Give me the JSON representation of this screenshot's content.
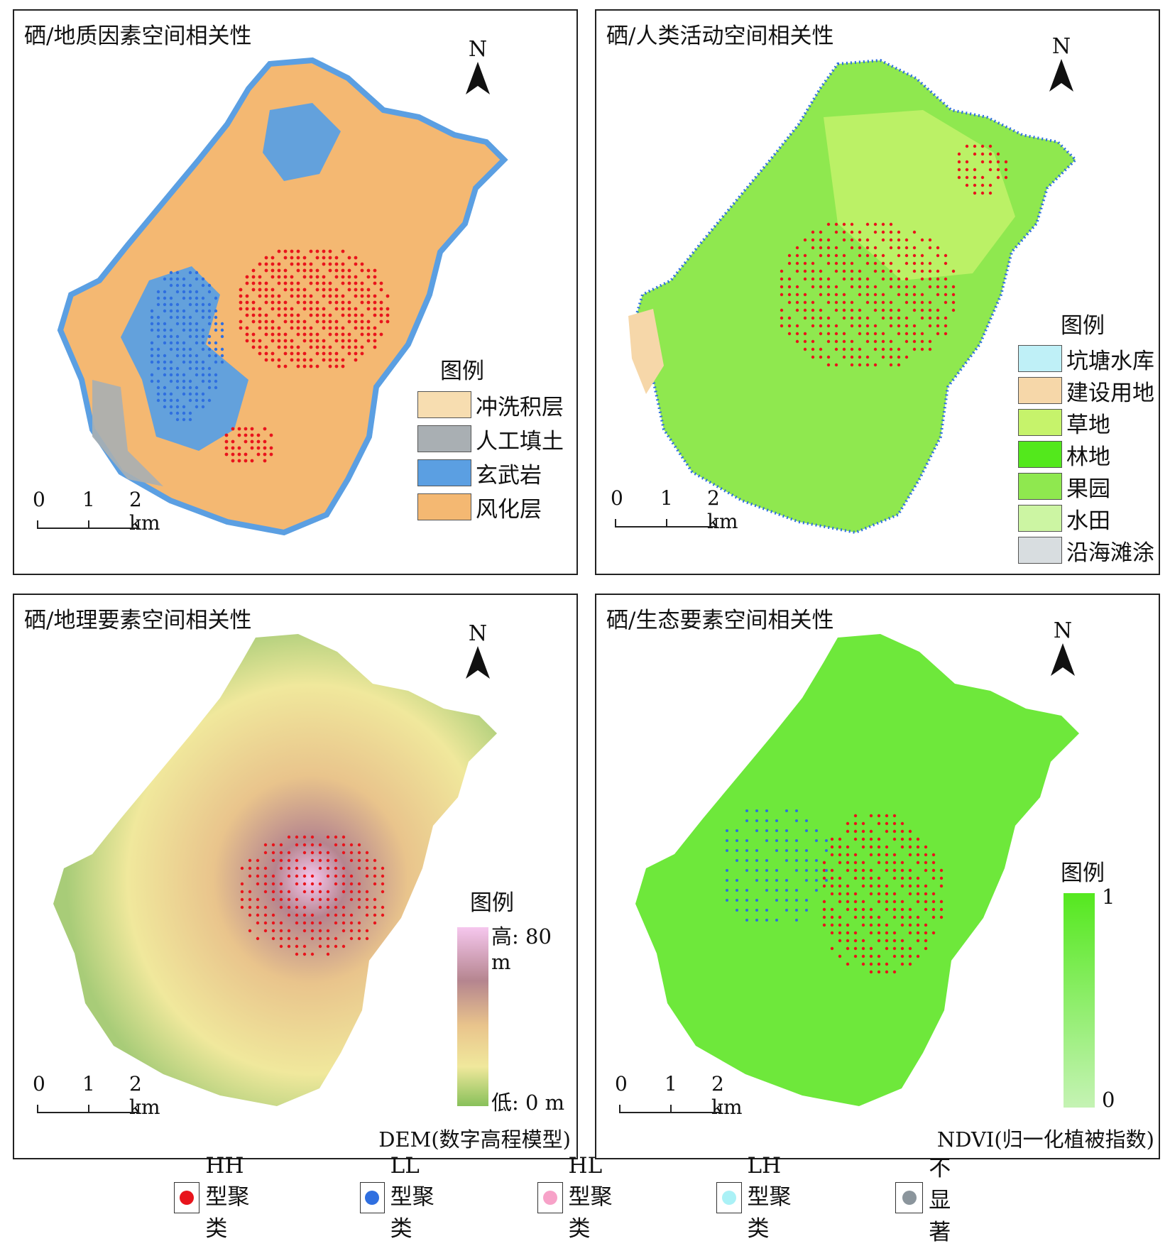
{
  "panels": [
    {
      "title": "硒/地质因素空间相关性",
      "legend_title": "图例",
      "legend": [
        {
          "label": "冲洗积层",
          "color": "#f7ddb0"
        },
        {
          "label": "人工填土",
          "color": "#a9afb3"
        },
        {
          "label": "玄武岩",
          "color": "#5b9fe2"
        },
        {
          "label": "风化层",
          "color": "#f4b872"
        }
      ]
    },
    {
      "title": "硒/人类活动空间相关性",
      "legend_title": "图例",
      "legend": [
        {
          "label": "坑塘水库",
          "color": "#bff0f7"
        },
        {
          "label": "建设用地",
          "color": "#f6d7a9"
        },
        {
          "label": "草地",
          "color": "#c6f36b"
        },
        {
          "label": "林地",
          "color": "#53e81c"
        },
        {
          "label": "果园",
          "color": "#8fe84f"
        },
        {
          "label": "水田",
          "color": "#ccf5a3"
        },
        {
          "label": "沿海滩涂",
          "color": "#d8dde0"
        }
      ]
    },
    {
      "title": "硒/地理要素空间相关性",
      "legend_title": "图例",
      "high_label": "高: 80 m",
      "low_label": "低: 0 m",
      "caption": "DEM(数字高程模型)",
      "gradient": [
        "#f6c7ee",
        "#b5858f",
        "#e9c48c",
        "#f0e89c",
        "#88c05a"
      ]
    },
    {
      "title": "硒/生态要素空间相关性",
      "legend_title": "图例",
      "high_label": "1",
      "low_label": "0",
      "caption": "NDVI(归一化植被指数)",
      "gradient": [
        "#55e81f",
        "#c5f3b4"
      ]
    }
  ],
  "north_label": "N",
  "scale": {
    "t0": "0",
    "t1": "1",
    "t2": "2 km"
  },
  "cluster_legend": [
    {
      "label": "HH型聚类",
      "color": "#e8141c"
    },
    {
      "label": "LL型聚类",
      "color": "#2f6fe0"
    },
    {
      "label": "HL型聚类",
      "color": "#f7a2c8"
    },
    {
      "label": "LH型聚类",
      "color": "#aaf1f6"
    },
    {
      "label": "不显著",
      "color": "#8b959c"
    }
  ]
}
